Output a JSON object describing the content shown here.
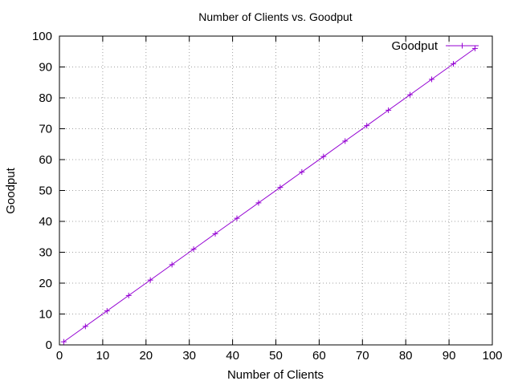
{
  "chart_data": {
    "type": "line",
    "title": "Number of Clients vs. Goodput",
    "xlabel": "Number of Clients",
    "ylabel": "Goodput",
    "xlim": [
      0,
      100
    ],
    "ylim": [
      0,
      100
    ],
    "xticks": [
      0,
      10,
      20,
      30,
      40,
      50,
      60,
      70,
      80,
      90,
      100
    ],
    "yticks": [
      0,
      10,
      20,
      30,
      40,
      50,
      60,
      70,
      80,
      90,
      100
    ],
    "grid": true,
    "legend_position": "top-right",
    "series": [
      {
        "name": "Goodput",
        "color": "#9400d3",
        "marker": "plus",
        "x": [
          1,
          6,
          11,
          16,
          21,
          26,
          31,
          36,
          41,
          46,
          51,
          56,
          61,
          66,
          71,
          76,
          81,
          86,
          91,
          96
        ],
        "y": [
          1,
          6,
          11,
          16,
          21,
          26,
          31,
          36,
          41,
          46,
          51,
          56,
          61,
          66,
          71,
          76,
          81,
          86,
          91,
          96
        ]
      }
    ]
  }
}
